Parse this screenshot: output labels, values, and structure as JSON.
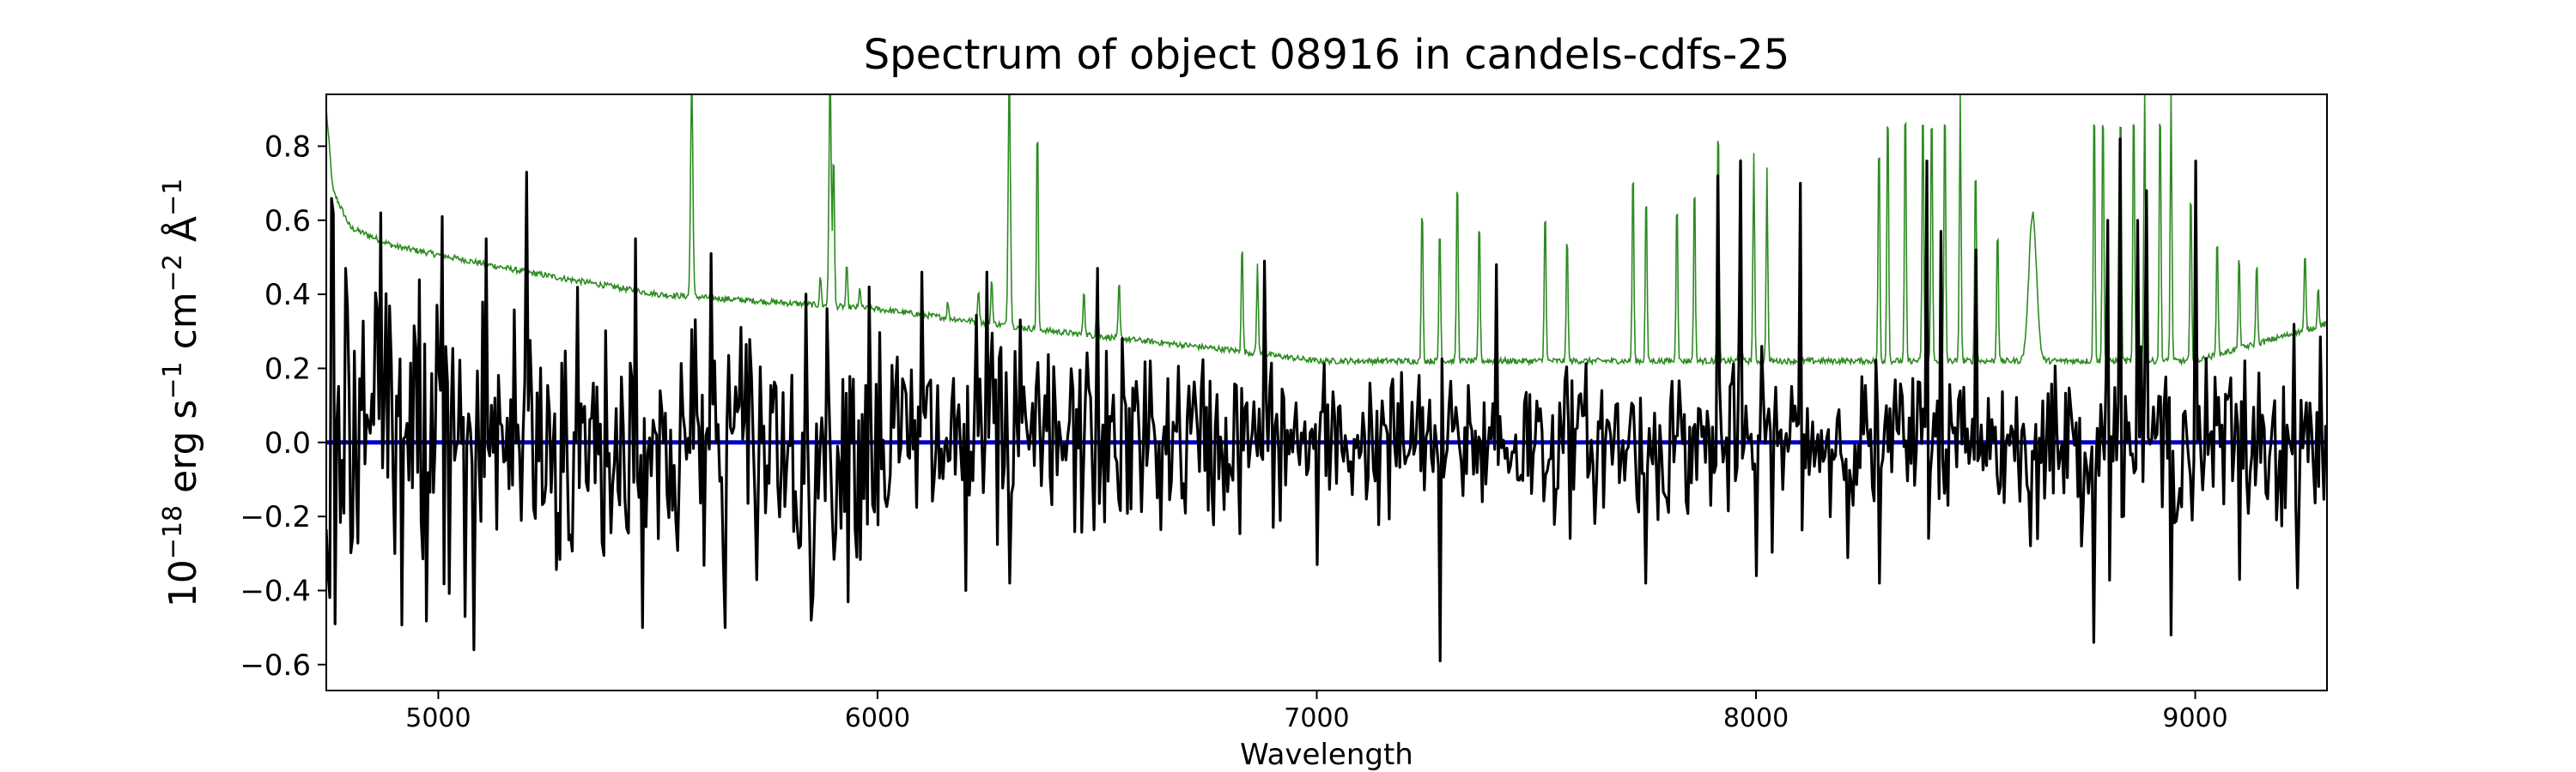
{
  "chart_data": {
    "type": "line",
    "title": "Spectrum of object 08916 in candels-cdfs-25",
    "xlabel": "Wavelength",
    "ylabel_base": "10",
    "ylabel_exp": "−18",
    "ylabel_units": [
      {
        "t": " erg s",
        "sup": "−1"
      },
      {
        "t": " cm",
        "sup": "−2"
      },
      {
        "t": " Å",
        "sup": "−1"
      }
    ],
    "xlim": [
      4745,
      9300
    ],
    "ylim": [
      -0.67,
      0.94
    ],
    "xticks": [
      5000,
      6000,
      7000,
      8000,
      9000
    ],
    "xtick_labels": [
      "5000",
      "6000",
      "7000",
      "8000",
      "9000"
    ],
    "yticks": [
      -0.6,
      -0.4,
      -0.2,
      0.0,
      0.2,
      0.4,
      0.6,
      0.8
    ],
    "ytick_labels": [
      "−0.6",
      "−0.4",
      "−0.2",
      "0.0",
      "0.2",
      "0.4",
      "0.6",
      "0.8"
    ],
    "grid": false,
    "series": [
      {
        "role": "error-spectrum",
        "color": "#2e8b22",
        "style": "thin",
        "continuum": [
          [
            4745,
            0.9
          ],
          [
            4760,
            0.68
          ],
          [
            4800,
            0.58
          ],
          [
            4900,
            0.53
          ],
          [
            5200,
            0.46
          ],
          [
            5500,
            0.4
          ],
          [
            6000,
            0.36
          ],
          [
            6400,
            0.3
          ],
          [
            6800,
            0.25
          ],
          [
            7000,
            0.22
          ],
          [
            7200,
            0.22
          ],
          [
            7400,
            0.22
          ],
          [
            8000,
            0.22
          ],
          [
            8500,
            0.22
          ],
          [
            9000,
            0.22
          ],
          [
            9300,
            0.32
          ]
        ],
        "noise_amp": 0.008,
        "lines": [
          {
            "x": 5577,
            "h": 1.0,
            "w": 4
          },
          {
            "x": 5892,
            "h": 1.0,
            "w": 4
          },
          {
            "x": 5900,
            "h": 0.8,
            "w": 3
          },
          {
            "x": 6300,
            "h": 1.0,
            "w": 4
          },
          {
            "x": 6364,
            "h": 0.88,
            "w": 3
          },
          {
            "x": 5870,
            "h": 0.45,
            "w": 3
          },
          {
            "x": 5930,
            "h": 0.48,
            "w": 3
          },
          {
            "x": 5960,
            "h": 0.42,
            "w": 3
          },
          {
            "x": 6160,
            "h": 0.38,
            "w": 3
          },
          {
            "x": 6230,
            "h": 0.42,
            "w": 3
          },
          {
            "x": 6260,
            "h": 0.45,
            "w": 3
          },
          {
            "x": 6470,
            "h": 0.42,
            "w": 3
          },
          {
            "x": 6500,
            "h": 0.46,
            "w": 3
          },
          {
            "x": 6550,
            "h": 0.44,
            "w": 3
          },
          {
            "x": 6830,
            "h": 0.55,
            "w": 3
          },
          {
            "x": 6865,
            "h": 0.48,
            "w": 3
          },
          {
            "x": 7240,
            "h": 0.66,
            "w": 3
          },
          {
            "x": 7280,
            "h": 0.6,
            "w": 3
          },
          {
            "x": 7320,
            "h": 0.74,
            "w": 3
          },
          {
            "x": 7370,
            "h": 0.62,
            "w": 3
          },
          {
            "x": 7520,
            "h": 0.66,
            "w": 3
          },
          {
            "x": 7570,
            "h": 0.58,
            "w": 3
          },
          {
            "x": 7720,
            "h": 0.77,
            "w": 3
          },
          {
            "x": 7750,
            "h": 0.7,
            "w": 3
          },
          {
            "x": 7820,
            "h": 0.68,
            "w": 3
          },
          {
            "x": 7860,
            "h": 0.72,
            "w": 3
          },
          {
            "x": 7914,
            "h": 0.9,
            "w": 3
          },
          {
            "x": 7964,
            "h": 0.85,
            "w": 3
          },
          {
            "x": 7995,
            "h": 0.78,
            "w": 3
          },
          {
            "x": 8025,
            "h": 0.74,
            "w": 3
          },
          {
            "x": 8280,
            "h": 0.85,
            "w": 3
          },
          {
            "x": 8300,
            "h": 0.95,
            "w": 3
          },
          {
            "x": 8340,
            "h": 0.95,
            "w": 3
          },
          {
            "x": 8380,
            "h": 0.95,
            "w": 3
          },
          {
            "x": 8400,
            "h": 0.95,
            "w": 3
          },
          {
            "x": 8430,
            "h": 0.95,
            "w": 3
          },
          {
            "x": 8465,
            "h": 0.95,
            "w": 3
          },
          {
            "x": 8500,
            "h": 0.78,
            "w": 3
          },
          {
            "x": 8550,
            "h": 0.6,
            "w": 3
          },
          {
            "x": 8630,
            "h": 0.62,
            "w": 14
          },
          {
            "x": 8770,
            "h": 0.95,
            "w": 3
          },
          {
            "x": 8790,
            "h": 0.95,
            "w": 3
          },
          {
            "x": 8830,
            "h": 0.95,
            "w": 3
          },
          {
            "x": 8860,
            "h": 0.95,
            "w": 3
          },
          {
            "x": 8885,
            "h": 0.95,
            "w": 3
          },
          {
            "x": 8920,
            "h": 0.95,
            "w": 3
          },
          {
            "x": 8945,
            "h": 0.95,
            "w": 3
          },
          {
            "x": 8990,
            "h": 0.7,
            "w": 3
          },
          {
            "x": 9050,
            "h": 0.58,
            "w": 3
          },
          {
            "x": 9100,
            "h": 0.52,
            "w": 3
          },
          {
            "x": 9140,
            "h": 0.5,
            "w": 3
          },
          {
            "x": 9250,
            "h": 0.52,
            "w": 3
          },
          {
            "x": 9280,
            "h": 0.42,
            "w": 3
          }
        ]
      },
      {
        "role": "zero-line",
        "color": "#0000cc",
        "points": [
          [
            4745,
            0.0
          ],
          [
            9300,
            0.0
          ]
        ]
      },
      {
        "role": "flux-spectrum",
        "color": "#000000",
        "step": 4,
        "sigma_scale": 0.45,
        "peaks": [
          [
            4790,
            0.47
          ],
          [
            4750,
            -0.35
          ],
          [
            4765,
            -0.49
          ],
          [
            4870,
            0.62
          ],
          [
            4900,
            -0.3
          ],
          [
            5010,
            0.61
          ],
          [
            5060,
            -0.47
          ],
          [
            5080,
            -0.56
          ],
          [
            5110,
            0.55
          ],
          [
            5200,
            0.73
          ],
          [
            5300,
            -0.25
          ],
          [
            5450,
            0.55
          ],
          [
            5500,
            -0.26
          ],
          [
            5620,
            0.51
          ],
          [
            5650,
            -0.32
          ],
          [
            5850,
            -0.48
          ],
          [
            5980,
            0.42
          ],
          [
            6100,
            0.46
          ],
          [
            6200,
            -0.4
          ],
          [
            6250,
            0.46
          ],
          [
            6300,
            -0.38
          ],
          [
            6500,
            0.47
          ],
          [
            6620,
            0.22
          ],
          [
            6880,
            0.49
          ],
          [
            7000,
            -0.33
          ],
          [
            7280,
            -0.59
          ],
          [
            7410,
            0.48
          ],
          [
            7750,
            -0.38
          ],
          [
            7914,
            0.72
          ],
          [
            7964,
            0.76
          ],
          [
            8000,
            -0.36
          ],
          [
            8100,
            0.7
          ],
          [
            8280,
            -0.38
          ],
          [
            8390,
            0.76
          ],
          [
            8420,
            0.57
          ],
          [
            8500,
            0.52
          ],
          [
            8640,
            -0.26
          ],
          [
            8770,
            -0.54
          ],
          [
            8800,
            0.6
          ],
          [
            8830,
            0.82
          ],
          [
            8870,
            0.6
          ],
          [
            8890,
            0.68
          ],
          [
            8945,
            -0.52
          ],
          [
            9000,
            0.76
          ],
          [
            9100,
            -0.37
          ]
        ]
      }
    ]
  }
}
